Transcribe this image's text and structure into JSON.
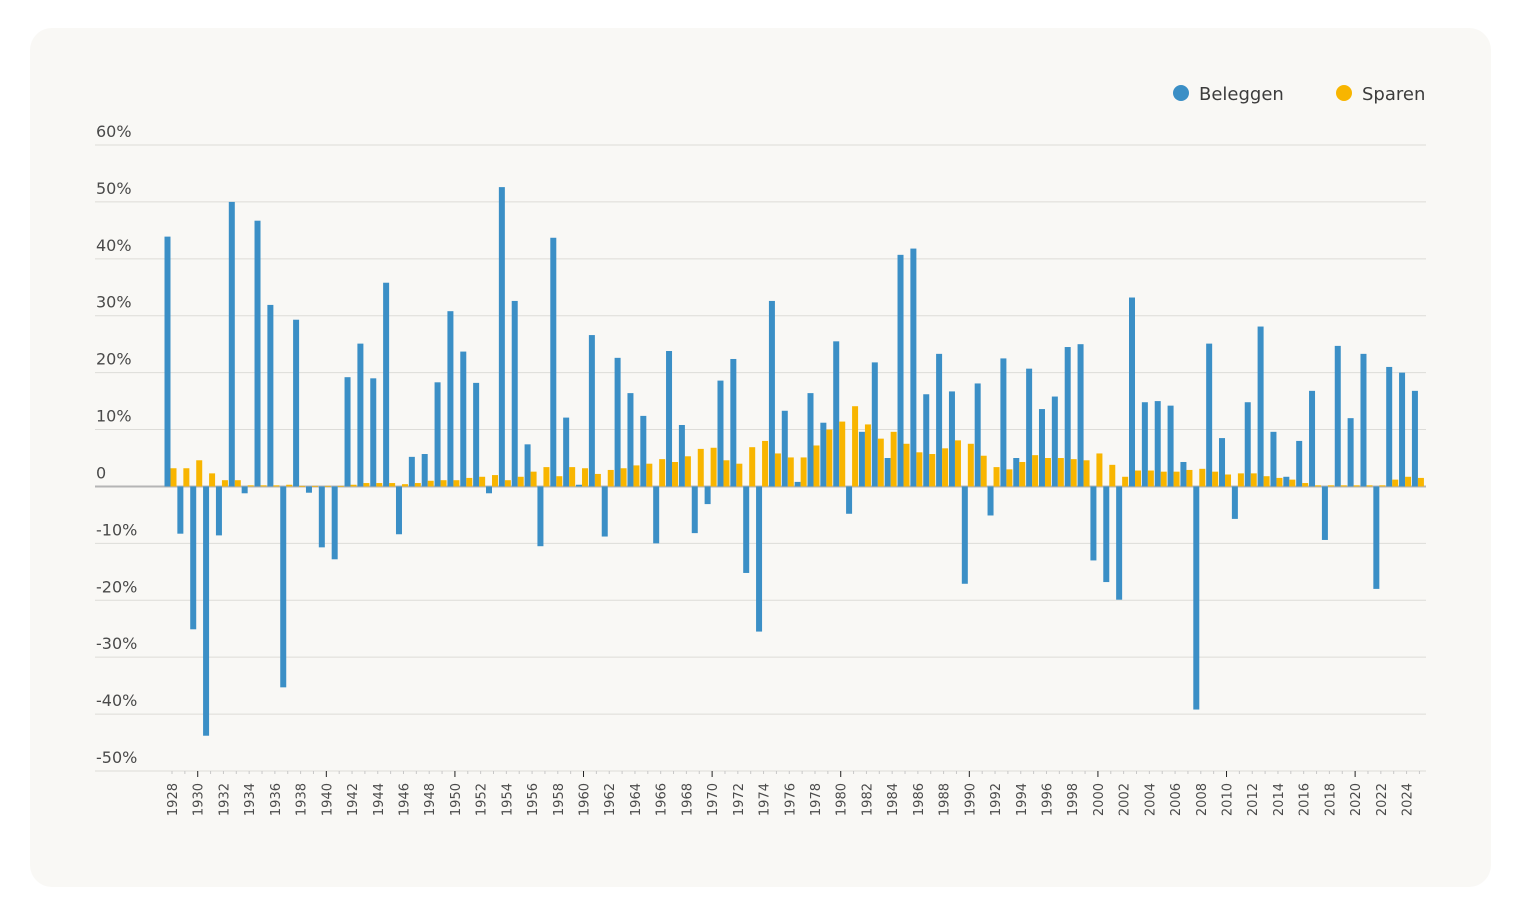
{
  "chart_data": {
    "type": "bar",
    "title": "",
    "xlabel": "",
    "ylabel": "",
    "ylim": [
      -50,
      60
    ],
    "yticks": [
      60,
      50,
      40,
      30,
      20,
      10,
      0,
      -10,
      -20,
      -30,
      -40,
      -50
    ],
    "ytick_labels": [
      "60%",
      "50%",
      "40%",
      "30%",
      "20%",
      "10%",
      "0",
      "-10%",
      "-20%",
      "-30%",
      "-40%",
      "-50%"
    ],
    "grid": true,
    "legend_position": "top-right",
    "categories": [
      1928,
      1929,
      1930,
      1931,
      1932,
      1933,
      1934,
      1935,
      1936,
      1937,
      1938,
      1939,
      1940,
      1941,
      1942,
      1943,
      1944,
      1945,
      1946,
      1947,
      1948,
      1949,
      1950,
      1951,
      1952,
      1953,
      1954,
      1955,
      1956,
      1957,
      1958,
      1959,
      1960,
      1961,
      1962,
      1963,
      1964,
      1965,
      1966,
      1967,
      1968,
      1969,
      1970,
      1971,
      1972,
      1973,
      1974,
      1975,
      1976,
      1977,
      1978,
      1979,
      1980,
      1981,
      1982,
      1983,
      1984,
      1985,
      1986,
      1987,
      1988,
      1989,
      1990,
      1991,
      1992,
      1993,
      1994,
      1995,
      1996,
      1997,
      1998,
      1999,
      2000,
      2001,
      2002,
      2003,
      2004,
      2005,
      2006,
      2007,
      2008,
      2009,
      2010,
      2011,
      2012,
      2013,
      2014,
      2015,
      2016,
      2017,
      2018,
      2019,
      2020,
      2021,
      2022,
      2023,
      2024,
      2025
    ],
    "xtick_labels": [
      "1928",
      "1930",
      "1932",
      "1934",
      "1936",
      "1938",
      "1940",
      "1942",
      "1944",
      "1946",
      "1948",
      "1950",
      "1952",
      "1954",
      "1956",
      "1958",
      "1960",
      "1962",
      "1964",
      "1966",
      "1968",
      "1970",
      "1972",
      "1974",
      "1976",
      "1978",
      "1980",
      "1982",
      "1984",
      "1986",
      "1988",
      "1990",
      "1992",
      "1994",
      "1996",
      "1998",
      "2000",
      "2002",
      "2004",
      "2006",
      "2008",
      "2010",
      "2012",
      "2014",
      "2016",
      "2018",
      "2020",
      "2022",
      "2024"
    ],
    "series": [
      {
        "name": "Beleggen",
        "color": "#3b8fc6",
        "values": [
          43.9,
          -8.3,
          -25.1,
          -43.8,
          -8.6,
          50.0,
          -1.2,
          46.7,
          31.9,
          -35.3,
          29.3,
          -1.1,
          -10.7,
          -12.8,
          19.2,
          25.1,
          19.0,
          35.8,
          -8.4,
          5.2,
          5.7,
          18.3,
          30.8,
          23.7,
          18.2,
          -1.2,
          52.6,
          32.6,
          7.4,
          -10.5,
          43.7,
          12.1,
          0.3,
          26.6,
          -8.8,
          22.6,
          16.4,
          12.4,
          -10.0,
          23.8,
          10.8,
          -8.2,
          -3.1,
          18.6,
          22.4,
          -15.2,
          -25.5,
          32.6,
          13.3,
          0.8,
          16.4,
          11.2,
          25.5,
          -4.8,
          9.6,
          21.8,
          5.0,
          40.7,
          41.8,
          16.2,
          23.3,
          16.7,
          -17.1,
          18.1,
          -5.1,
          22.5,
          5.0,
          20.7,
          13.6,
          15.8,
          24.5,
          25.0,
          -13.0,
          -16.8,
          -19.9,
          33.2,
          14.8,
          15.0,
          14.2,
          4.3,
          -39.2,
          25.1,
          8.5,
          -5.7,
          14.8,
          28.1,
          9.6,
          1.7,
          8.0,
          16.8,
          -9.4,
          24.7,
          12.0,
          23.3,
          -18.0,
          21.0,
          20.0,
          16.8
        ]
      },
      {
        "name": "Sparen",
        "color": "#f8b500",
        "values": [
          3.2,
          3.2,
          4.6,
          2.3,
          1.1,
          1.1,
          0.2,
          0.2,
          0.2,
          0.3,
          0.1,
          0.1,
          0.1,
          0.1,
          0.3,
          0.6,
          0.6,
          0.6,
          0.4,
          0.6,
          1.0,
          1.1,
          1.1,
          1.5,
          1.7,
          2.0,
          1.1,
          1.7,
          2.6,
          3.4,
          1.8,
          3.4,
          3.2,
          2.2,
          2.9,
          3.2,
          3.7,
          4.0,
          4.8,
          4.3,
          5.3,
          6.6,
          6.8,
          4.6,
          4.0,
          6.9,
          8.0,
          5.8,
          5.1,
          5.1,
          7.2,
          10.0,
          11.4,
          14.1,
          10.9,
          8.4,
          9.6,
          7.5,
          6.0,
          5.7,
          6.7,
          8.1,
          7.5,
          5.4,
          3.4,
          3.0,
          4.3,
          5.5,
          5.0,
          5.0,
          4.8,
          4.6,
          5.8,
          3.8,
          1.7,
          2.8,
          2.8,
          2.6,
          2.6,
          2.9,
          3.1,
          2.6,
          2.1,
          2.3,
          2.3,
          1.8,
          1.5,
          1.2,
          0.6,
          0.2,
          0.2,
          0.2,
          0.2,
          0.2,
          0.2,
          1.2,
          1.7,
          1.5
        ]
      }
    ]
  },
  "legend": {
    "items": [
      {
        "label": "Beleggen",
        "color": "#3b8fc6"
      },
      {
        "label": "Sparen",
        "color": "#f8b500"
      }
    ]
  }
}
